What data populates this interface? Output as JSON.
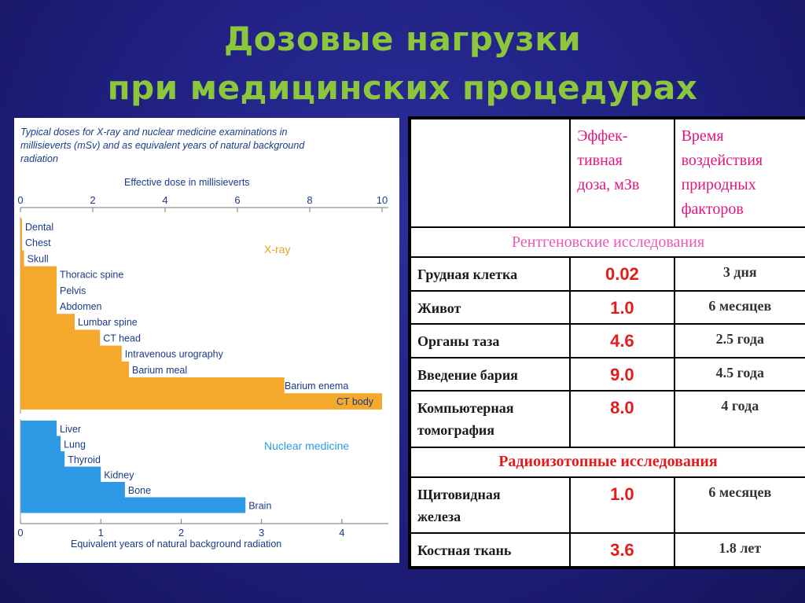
{
  "slide": {
    "title_line1": "Дозовые нагрузки",
    "title_line2": "при медицинских процедурах"
  },
  "figure": {
    "caption_lines": [
      "Typical doses for X-ray and nuclear medicine examinations in",
      "millisieverts (mSv) and as equivalent years of natural background",
      "radiation"
    ],
    "top_axis_label": "Effective dose in millisieverts",
    "bottom_axis_label": "Equivalent years of natural background radiation",
    "xray_label": "X-ray",
    "nuclear_label": "Nuclear medicine",
    "colors": {
      "xray": "#f4a92c",
      "nuclear": "#2e9ae6",
      "xray_text": "#e8a020",
      "nuclear_text": "#2e9ae6",
      "caption": "#1a3a8a"
    }
  },
  "chart_data": [
    {
      "type": "bar",
      "orientation": "horizontal",
      "series_label": "X-ray",
      "xlabel": "Effective dose in millisieverts",
      "xlim": [
        0,
        10
      ],
      "xticks": [
        0,
        2,
        4,
        6,
        8,
        10
      ],
      "categories": [
        "Dental",
        "Chest",
        "Skull",
        "Thoracic spine",
        "Pelvis",
        "Abdomen",
        "Lumbar spine",
        "CT head",
        "Intravenous urography",
        "Barium meal",
        "Barium enema",
        "CT body"
      ],
      "values": [
        0.02,
        0.02,
        0.1,
        1.0,
        1.0,
        1.0,
        1.5,
        2.2,
        2.8,
        3.0,
        7.3,
        10.0
      ]
    },
    {
      "type": "bar",
      "orientation": "horizontal",
      "series_label": "Nuclear medicine",
      "xlabel": "Equivalent years of natural background radiation",
      "xlim": [
        0,
        4.5
      ],
      "xticks": [
        0,
        1,
        2,
        3,
        4
      ],
      "categories": [
        "Liver",
        "Lung",
        "Thyroid",
        "Kidney",
        "Bone",
        "Brain"
      ],
      "values": [
        0.45,
        0.5,
        0.55,
        1.0,
        1.3,
        2.8
      ]
    }
  ],
  "table": {
    "header": {
      "col1": "",
      "col2_lines": [
        "Эффек-",
        "тивная",
        "доза, мЗв"
      ],
      "col3_lines": [
        "Время",
        "воздействия",
        "природных",
        "факторов"
      ]
    },
    "section_xray": "Рентгеновские исследования",
    "rows_xray": [
      {
        "name_lines": [
          "Грудная клетка"
        ],
        "dose": "0.02",
        "equivalent": "3 дня"
      },
      {
        "name_lines": [
          "Живот"
        ],
        "dose": "1.0",
        "equivalent": "6 месяцев"
      },
      {
        "name_lines": [
          "Органы таза"
        ],
        "dose": "4.6",
        "equivalent": "2.5 года"
      },
      {
        "name_lines": [
          "Введение бария"
        ],
        "dose": "9.0",
        "equivalent": "4.5 года"
      },
      {
        "name_lines": [
          "Компьютерная",
          "томография"
        ],
        "dose": "8.0",
        "equivalent": "4 года"
      }
    ],
    "section_nuclear": "Радиоизотопные исследования",
    "rows_nuclear": [
      {
        "name_lines": [
          "Щитовидная",
          "железа"
        ],
        "dose": "1.0",
        "equivalent": "6 месяцев"
      },
      {
        "name_lines": [
          "Костная ткань"
        ],
        "dose": "3.6",
        "equivalent": "1.8 лет"
      }
    ]
  }
}
